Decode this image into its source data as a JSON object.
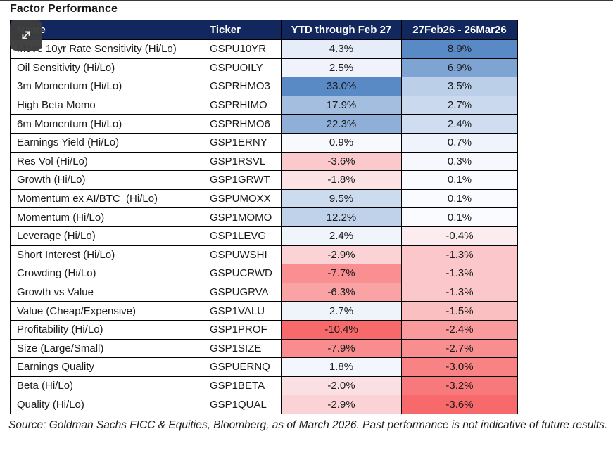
{
  "page": {
    "title": "Factor Performance"
  },
  "overlay": {
    "expand_button": {
      "icon": "expand-icon"
    }
  },
  "colors": {
    "header_bg": "#12275E",
    "header_text": "#FFFFFF",
    "grid_border": "#000000",
    "button_bg": "#3D3D3D",
    "top_rule": "#3B3B3B",
    "scale_positive_max": "#5A8AC6",
    "scale_midpoint": "#FCFCFF",
    "scale_negative_min": "#F8696B"
  },
  "table": {
    "headers": [
      "Name",
      "Ticker",
      "YTD through Feb 27",
      "27Feb26 - 26Mar26"
    ],
    "rows": [
      {
        "name": "Move 10yr Rate Sensitivity (Hi/Lo)",
        "ticker": "GSPU10YR",
        "values": [
          "4.3%",
          "8.9%"
        ]
      },
      {
        "name": "Oil Sensitivity (Hi/Lo)",
        "ticker": "GSPUOILY",
        "values": [
          "2.5%",
          "6.9%"
        ]
      },
      {
        "name": "3m Momentum (Hi/Lo)",
        "ticker": "GSPRHMO3",
        "values": [
          "33.0%",
          "3.5%"
        ]
      },
      {
        "name": "High Beta Momo",
        "ticker": "GSPRHIMO",
        "values": [
          "17.9%",
          "2.7%"
        ]
      },
      {
        "name": "6m Momentum (Hi/Lo)",
        "ticker": "GSPRHMO6",
        "values": [
          "22.3%",
          "2.4%"
        ]
      },
      {
        "name": "Earnings Yield (Hi/Lo)",
        "ticker": "GSP1ERNY",
        "values": [
          "0.9%",
          "0.7%"
        ]
      },
      {
        "name": "Res Vol (Hi/Lo)",
        "ticker": "GSP1RSVL",
        "values": [
          "-3.6%",
          "0.3%"
        ]
      },
      {
        "name": "Growth (Hi/Lo)",
        "ticker": "GSP1GRWT",
        "values": [
          "-1.8%",
          "0.1%"
        ]
      },
      {
        "name": "Momentum ex AI/BTC  (Hi/Lo)",
        "ticker": "GSPUMOXX",
        "values": [
          "9.5%",
          "0.1%"
        ]
      },
      {
        "name": "Momentum (Hi/Lo)",
        "ticker": "GSP1MOMO",
        "values": [
          "12.2%",
          "0.1%"
        ]
      },
      {
        "name": "Leverage (Hi/Lo)",
        "ticker": "GSP1LEVG",
        "values": [
          "2.4%",
          "-0.4%"
        ]
      },
      {
        "name": "Short Interest (Hi/Lo)",
        "ticker": "GSPUWSHI",
        "values": [
          "-2.9%",
          "-1.3%"
        ]
      },
      {
        "name": "Crowding (Hi/Lo)",
        "ticker": "GSPUCRWD",
        "values": [
          "-7.7%",
          "-1.3%"
        ]
      },
      {
        "name": "Growth vs Value",
        "ticker": "GSPUGRVA",
        "values": [
          "-6.3%",
          "-1.3%"
        ]
      },
      {
        "name": "Value (Cheap/Expensive)",
        "ticker": "GSP1VALU",
        "values": [
          "2.7%",
          "-1.5%"
        ]
      },
      {
        "name": "Profitability (Hi/Lo)",
        "ticker": "GSP1PROF",
        "values": [
          "-10.4%",
          "-2.4%"
        ]
      },
      {
        "name": "Size (Large/Small)",
        "ticker": "GSP1SIZE",
        "values": [
          "-7.9%",
          "-2.7%"
        ]
      },
      {
        "name": "Earnings Quality",
        "ticker": "GSPUERNQ",
        "values": [
          "1.8%",
          "-3.0%"
        ]
      },
      {
        "name": "Beta (Hi/Lo)",
        "ticker": "GSP1BETA",
        "values": [
          "-2.0%",
          "-3.2%"
        ]
      },
      {
        "name": "Quality (Hi/Lo)",
        "ticker": "GSP1QUAL",
        "values": [
          "-2.9%",
          "-3.6%"
        ]
      }
    ]
  },
  "chart_data": {
    "type": "heatmap",
    "title": "Factor Performance",
    "columns": [
      "YTD through Feb 27",
      "27Feb26 - 26Mar26"
    ],
    "row_labels": [
      "Move 10yr Rate Sensitivity (Hi/Lo)",
      "Oil Sensitivity (Hi/Lo)",
      "3m Momentum (Hi/Lo)",
      "High Beta Momo",
      "6m Momentum (Hi/Lo)",
      "Earnings Yield (Hi/Lo)",
      "Res Vol (Hi/Lo)",
      "Growth (Hi/Lo)",
      "Momentum ex AI/BTC  (Hi/Lo)",
      "Momentum (Hi/Lo)",
      "Leverage (Hi/Lo)",
      "Short Interest (Hi/Lo)",
      "Crowding (Hi/Lo)",
      "Growth vs Value",
      "Value (Cheap/Expensive)",
      "Profitability (Hi/Lo)",
      "Size (Large/Small)",
      "Earnings Quality",
      "Beta (Hi/Lo)",
      "Quality (Hi/Lo)"
    ],
    "tickers": [
      "GSPU10YR",
      "GSPUOILY",
      "GSPRHMO3",
      "GSPRHIMO",
      "GSPRHMO6",
      "GSP1ERNY",
      "GSP1RSVL",
      "GSP1GRWT",
      "GSPUMOXX",
      "GSP1MOMO",
      "GSP1LEVG",
      "GSPUWSHI",
      "GSPUCRWD",
      "GSPUGRVA",
      "GSP1VALU",
      "GSP1PROF",
      "GSP1SIZE",
      "GSPUERNQ",
      "GSP1BETA",
      "GSP1QUAL"
    ],
    "values_pct": [
      [
        4.3,
        8.9
      ],
      [
        2.5,
        6.9
      ],
      [
        33.0,
        3.5
      ],
      [
        17.9,
        2.7
      ],
      [
        22.3,
        2.4
      ],
      [
        0.9,
        0.7
      ],
      [
        -3.6,
        0.3
      ],
      [
        -1.8,
        0.1
      ],
      [
        9.5,
        0.1
      ],
      [
        12.2,
        0.1
      ],
      [
        2.4,
        -0.4
      ],
      [
        -2.9,
        -1.3
      ],
      [
        -7.7,
        -1.3
      ],
      [
        -6.3,
        -1.3
      ],
      [
        2.7,
        -1.5
      ],
      [
        -10.4,
        -2.4
      ],
      [
        -7.9,
        -2.7
      ],
      [
        1.8,
        -3.0
      ],
      [
        -2.0,
        -3.2
      ],
      [
        -2.9,
        -3.6
      ]
    ],
    "color_scale": {
      "scaling": "per-column, zero midpoint",
      "positive_max_color": "#5A8AC6",
      "midpoint_color": "#FCFCFF",
      "negative_min_color": "#F8696B"
    }
  },
  "footer": {
    "source": "Source: Goldman Sachs FICC & Equities, Bloomberg, as of March 2026. Past performance is not indicative of future results."
  }
}
